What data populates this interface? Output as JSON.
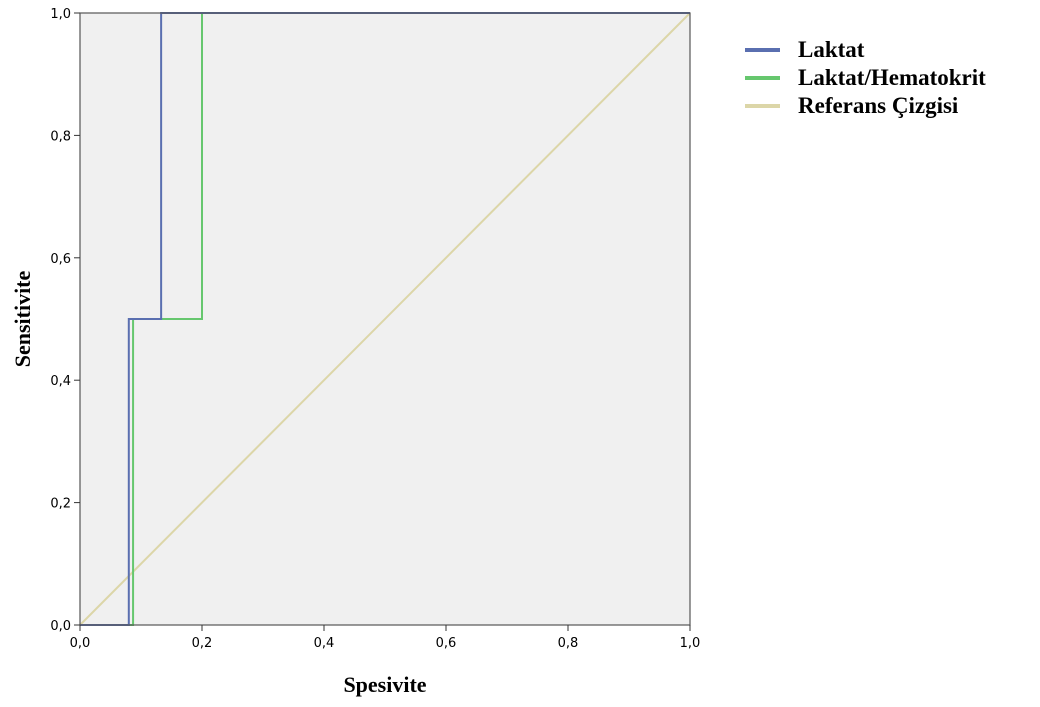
{
  "chart_data": {
    "type": "line",
    "title": "",
    "xlabel": "Spesivite",
    "ylabel": "Sensitivite",
    "xlim": [
      0,
      1
    ],
    "ylim": [
      0,
      1
    ],
    "grid": false,
    "legend_position": "top-right outside",
    "x_ticks": [
      "0,0",
      "0,2",
      "0,4",
      "0,6",
      "0,8",
      "1,0"
    ],
    "y_ticks": [
      "0,0",
      "0,2",
      "0,4",
      "0,6",
      "0,8",
      "1,0"
    ],
    "series": [
      {
        "name": "Laktat",
        "color": "#5a6fb0",
        "x": [
          0.0,
          0.08,
          0.08,
          0.133,
          0.133,
          1.0
        ],
        "y": [
          0.0,
          0.0,
          0.5,
          0.5,
          1.0,
          1.0
        ]
      },
      {
        "name": "Laktat/Hematokrit",
        "color": "#66c76e",
        "x": [
          0.0,
          0.087,
          0.087,
          0.2,
          0.2,
          1.0
        ],
        "y": [
          0.0,
          0.0,
          0.5,
          0.5,
          1.0,
          1.0
        ]
      },
      {
        "name": "Referans Çizgisi",
        "color": "#dcd6a8",
        "x": [
          0.0,
          1.0
        ],
        "y": [
          0.0,
          1.0
        ]
      }
    ],
    "plot_background": "#f0f0f0"
  }
}
